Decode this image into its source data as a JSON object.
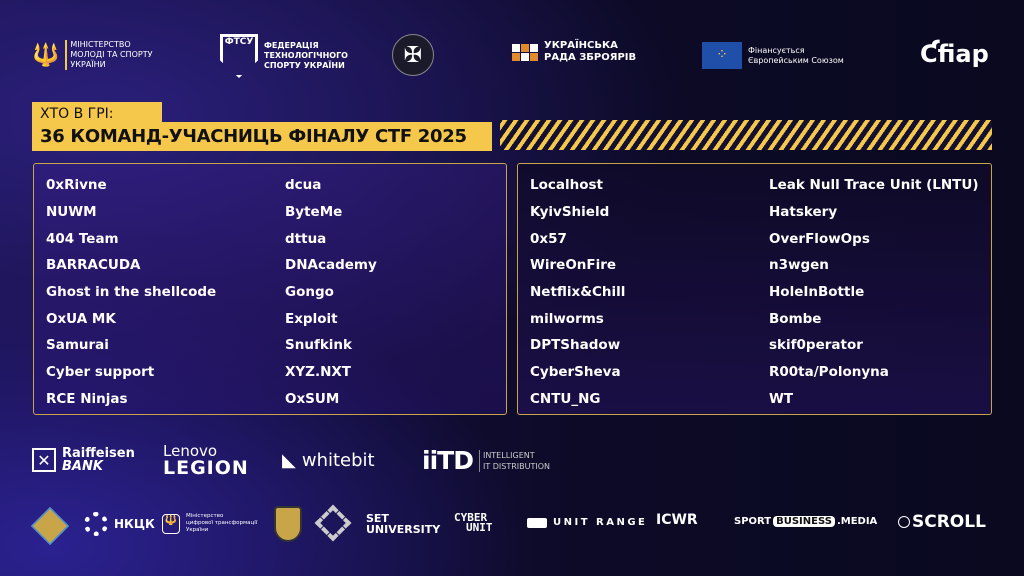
{
  "header_logos": [
    {
      "name": "ministry-youth-sports",
      "text": [
        "МІНІСТЕРСТВО",
        "МОЛОДІ ТА СПОРТУ",
        "УКРАЇНИ"
      ]
    },
    {
      "name": "ftsu",
      "mark": "ФТСУ",
      "text": [
        "ФЕДЕРАЦІЯ",
        "ТЕХНОЛОГІЧНОГО",
        "СПОРТУ УКРАЇНИ"
      ]
    },
    {
      "name": "sszi-emblem"
    },
    {
      "name": "ukrainian-council-armourers",
      "text": [
        "УКРАЇНСЬКА",
        "РАДА ЗБРОЯРІВ"
      ]
    },
    {
      "name": "eu-funded",
      "text": [
        "Фінансується",
        "Європейським Союзом"
      ]
    },
    {
      "name": "fiap",
      "text": [
        "fiap"
      ]
    }
  ],
  "title": {
    "kicker": "ХТО В ГРІ:",
    "main": "36 КОМАНД-УЧАСНИЦЬ ФІНАЛУ CTF 2025"
  },
  "teams_left": [
    "0xRivne",
    "NUWM",
    "404 Team",
    "BARRACUDA",
    "Ghost in the shellcode",
    "OxUA MK",
    "Samurai",
    "Cyber support",
    "RCE Ninjas",
    "dcua",
    "ByteMe",
    "dttua",
    "DNAcademy",
    "Gongo",
    "Exploit",
    "Snufkink",
    "XYZ.NXT",
    "OxSUM"
  ],
  "teams_right": [
    "Localhost",
    "KyivShield",
    "0x57",
    "WireOnFire",
    "Netflix&Chill",
    "milworms",
    "DPTShadow",
    "CyberSheva",
    "CNTU_NG",
    "Leak Null Trace Unit (LNTU)",
    "Hatskery",
    "OverFlowOps",
    "n3wgen",
    "HoleInBottle",
    "Bombe",
    "skif0perator",
    "R00ta/Polonyna",
    "WT"
  ],
  "sponsors": [
    {
      "name": "raiffeisen",
      "text": [
        "Raiffeisen",
        "BANK"
      ]
    },
    {
      "name": "lenovo-legion",
      "text": [
        "Lenovo",
        "LEGION"
      ]
    },
    {
      "name": "whitebit",
      "text": [
        "whitebit"
      ]
    },
    {
      "name": "iitd",
      "text": [
        "iiTD",
        "INTELLIGENT",
        "IT DISTRIBUTION"
      ]
    }
  ],
  "partners": [
    {
      "name": "emblem-gold"
    },
    {
      "name": "nkck",
      "text": "НКЦК"
    },
    {
      "name": "ministry-digital",
      "text": [
        "Міністерство",
        "цифрової трансформації",
        "України"
      ]
    },
    {
      "name": "shield-emblem"
    },
    {
      "name": "diamond-emblem"
    },
    {
      "name": "set-university",
      "text": [
        "SET",
        "UNIVERSITY"
      ]
    },
    {
      "name": "cyber-unit",
      "text": [
        "CYBER",
        "UNIT"
      ]
    },
    {
      "name": "unit-range",
      "text": "UNIT RANGE"
    },
    {
      "name": "icwr",
      "text": "ICWR"
    },
    {
      "name": "sport-business-media",
      "text": [
        "SPORT",
        "BUSINESS",
        ".MEDIA"
      ]
    },
    {
      "name": "scroll",
      "text": "SCROLL"
    }
  ],
  "colors": {
    "accent": "#f5c84c",
    "border": "#c9a54a",
    "background": "#0c0a26",
    "eu_blue": "#1f4fa8",
    "orange": "#e38b2c"
  }
}
